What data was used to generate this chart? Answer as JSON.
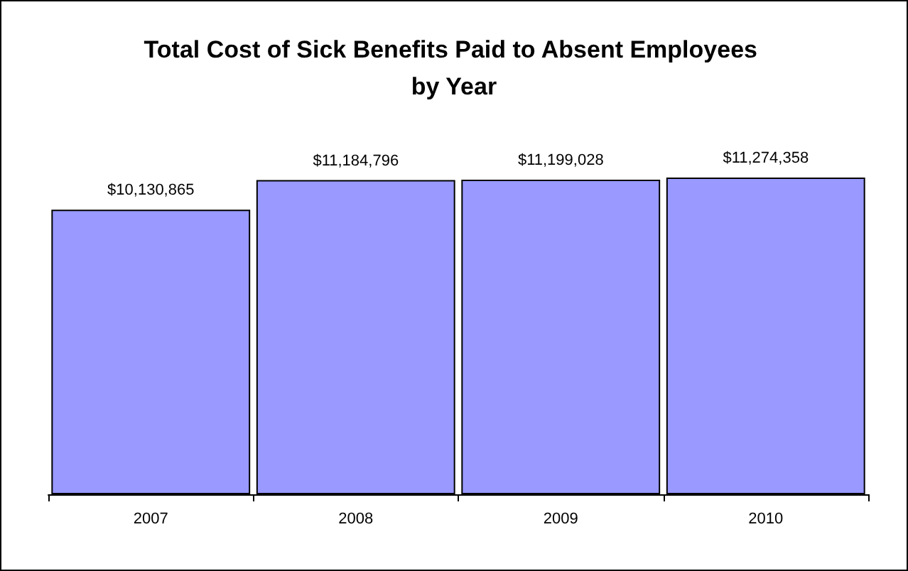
{
  "chart_data": {
    "type": "bar",
    "title": "Total Cost of Sick Benefits Paid to Absent Employees by Year",
    "categories": [
      "2007",
      "2008",
      "2009",
      "2010"
    ],
    "values": [
      10130865,
      11184796,
      11199028,
      11274358
    ],
    "value_labels": [
      "$10,130,865",
      "$11,184,796",
      "$11,199,028",
      "$11,274,358"
    ],
    "color": "#9999ff"
  }
}
